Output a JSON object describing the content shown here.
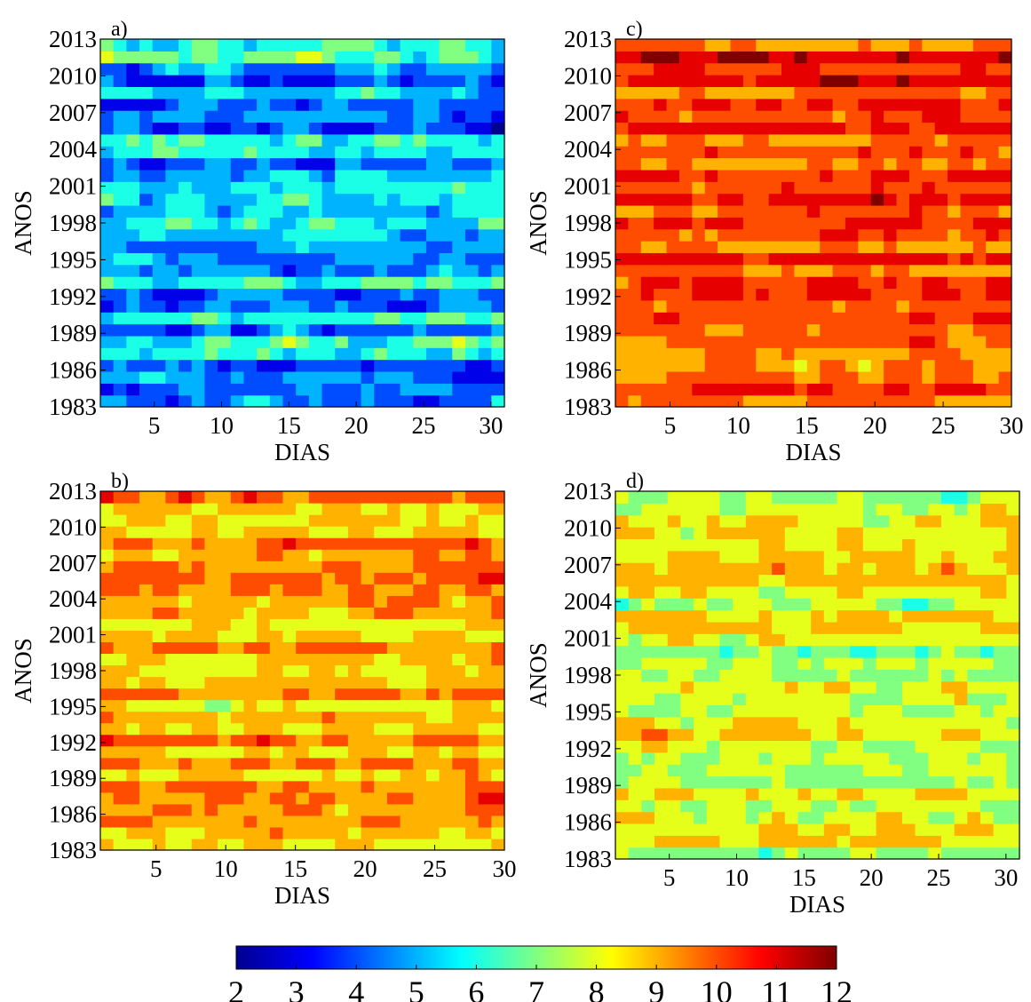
{
  "colors": {
    "colormap": [
      "#00008f",
      "#0000ff",
      "#0080ff",
      "#00ffff",
      "#80ff80",
      "#ffff00",
      "#ff8000",
      "#ff0000",
      "#800000"
    ],
    "contour_line": "#000000",
    "background": "#ffffff"
  },
  "chart_data": [
    {
      "type": "heatmap",
      "panel_label": "a)",
      "xlabel": "DIAS",
      "ylabel": "ANOS",
      "xlim": [
        1,
        31
      ],
      "ylim": [
        1983,
        2013
      ],
      "x_ticks": [
        5,
        10,
        15,
        20,
        25,
        30
      ],
      "y_ticks": [
        1983,
        1986,
        1989,
        1992,
        1995,
        1998,
        2001,
        2004,
        2007,
        2010,
        2013
      ],
      "value_range": [
        2,
        12
      ],
      "pattern": {
        "mean": 5.2,
        "amplitude": 2.6,
        "seed": 11
      },
      "grid": false
    },
    {
      "type": "heatmap",
      "panel_label": "b)",
      "xlabel": "DIAS",
      "ylabel": "ANOS",
      "xlim": [
        1,
        30
      ],
      "ylim": [
        1983,
        2013
      ],
      "x_ticks": [
        5,
        10,
        15,
        20,
        25,
        30
      ],
      "y_ticks": [
        1983,
        1986,
        1989,
        1992,
        1995,
        1998,
        2001,
        2004,
        2007,
        2010,
        2013
      ],
      "value_range": [
        2,
        12
      ],
      "pattern": {
        "mean": 9.1,
        "amplitude": 1.7,
        "seed": 23
      },
      "grid": false
    },
    {
      "type": "heatmap",
      "panel_label": "c)",
      "xlabel": "DIAS",
      "ylabel": "ANOS",
      "xlim": [
        1,
        30
      ],
      "ylim": [
        1983,
        2013
      ],
      "x_ticks": [
        5,
        10,
        15,
        20,
        25,
        30
      ],
      "y_ticks": [
        1983,
        1986,
        1989,
        1992,
        1995,
        1998,
        2001,
        2004,
        2007,
        2010,
        2013
      ],
      "value_range": [
        2,
        12
      ],
      "pattern": {
        "mean": 10.2,
        "amplitude": 1.6,
        "seed": 37
      },
      "grid": false
    },
    {
      "type": "heatmap",
      "panel_label": "d)",
      "xlabel": "DIAS",
      "ylabel": "ANOS",
      "xlim": [
        1,
        31
      ],
      "ylim": [
        1983,
        2013
      ],
      "x_ticks": [
        5,
        10,
        15,
        20,
        25,
        30
      ],
      "y_ticks": [
        1983,
        1986,
        1989,
        1992,
        1995,
        1998,
        2001,
        2004,
        2007,
        2010,
        2013
      ],
      "value_range": [
        2,
        12
      ],
      "pattern": {
        "mean": 7.8,
        "amplitude": 1.8,
        "seed": 51
      },
      "grid": false
    }
  ],
  "colorbar": {
    "ticks": [
      "2",
      "3",
      "4",
      "5",
      "6",
      "7",
      "8",
      "9",
      "10",
      "11",
      "12"
    ],
    "range": [
      2,
      12
    ],
    "placement": "bottom"
  }
}
